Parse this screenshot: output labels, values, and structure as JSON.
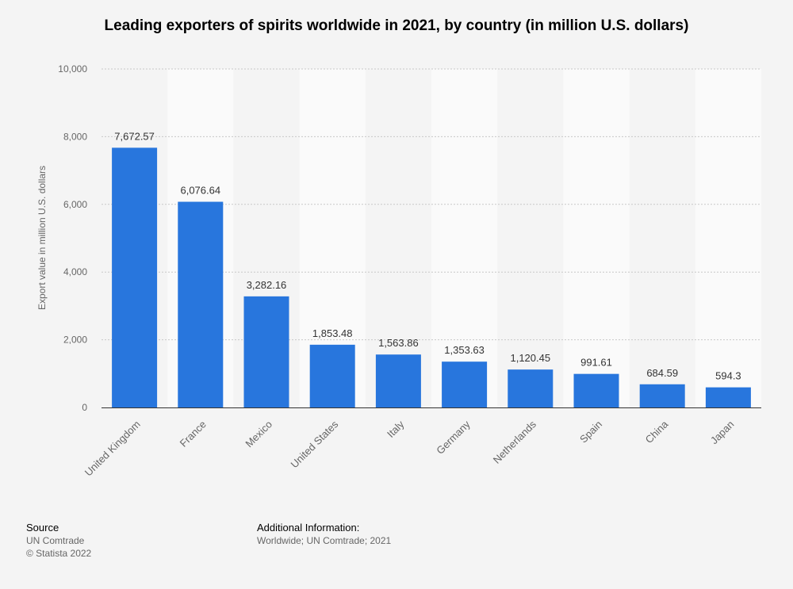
{
  "title": "Leading exporters of spirits worldwide in 2021, by country (in million U.S. dollars)",
  "chart_data": {
    "type": "bar",
    "title": "Leading exporters of spirits worldwide in 2021, by country (in million U.S. dollars)",
    "xlabel": "",
    "ylabel": "Export value in million U.S. dollars",
    "categories": [
      "United Kingdom",
      "France",
      "Mexico",
      "United States",
      "Italy",
      "Germany",
      "Netherlands",
      "Spain",
      "China",
      "Japan"
    ],
    "values": [
      7672.57,
      6076.64,
      3282.16,
      1853.48,
      1563.86,
      1353.63,
      1120.45,
      991.61,
      684.59,
      594.3
    ],
    "value_labels": [
      "7,672.57",
      "6,076.64",
      "3,282.16",
      "1,853.48",
      "1,563.86",
      "1,353.63",
      "1,120.45",
      "991.61",
      "684.59",
      "594.3"
    ],
    "ylim": [
      0,
      10000
    ],
    "yticks": [
      0,
      2000,
      4000,
      6000,
      8000,
      10000
    ],
    "ytick_labels": [
      "0",
      "2,000",
      "4,000",
      "6,000",
      "8,000",
      "10,000"
    ],
    "grid": true,
    "bar_color": "#2876dd"
  },
  "footer": {
    "source_heading": "Source",
    "source_lines": [
      "UN Comtrade",
      "© Statista 2022"
    ],
    "info_heading": "Additional Information:",
    "info_text": "Worldwide; UN Comtrade; 2021"
  }
}
